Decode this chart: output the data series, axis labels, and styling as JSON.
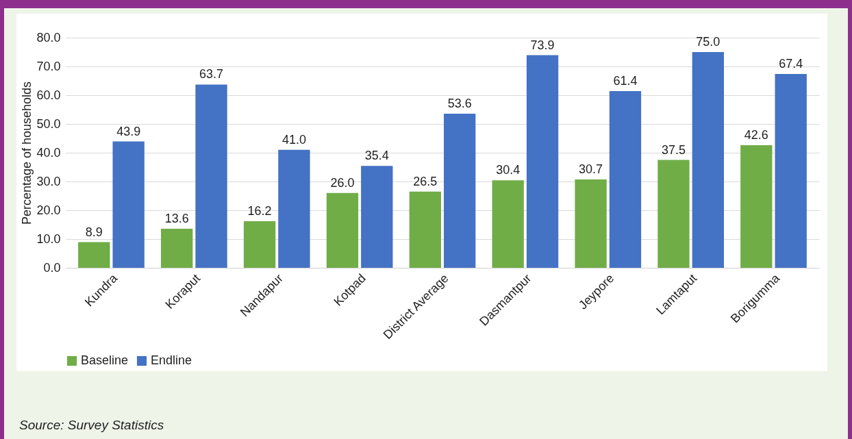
{
  "chart_data": {
    "type": "bar",
    "ylabel": "Percentage of households",
    "categories": [
      "Kundra",
      "Koraput",
      "Nandapur",
      "Kotpad",
      "District Average",
      "Dasmantpur",
      "Jeypore",
      "Lamtaput",
      "Borigumma"
    ],
    "series": [
      {
        "name": "Baseline",
        "color": "#70ad47",
        "values": [
          8.9,
          13.6,
          16.2,
          26.0,
          26.5,
          30.4,
          30.7,
          37.5,
          42.6
        ],
        "value_labels": [
          "8.9",
          "13.6",
          "16.2",
          "26.0",
          "26.5",
          "30.4",
          "30.7",
          "37.5",
          "42.6"
        ]
      },
      {
        "name": "Endline",
        "color": "#4472c4",
        "values": [
          43.9,
          63.7,
          41.0,
          35.4,
          53.6,
          73.9,
          61.4,
          75.0,
          67.4
        ],
        "value_labels": [
          "43.9",
          "63.7",
          "41.0",
          "35.4",
          "53.6",
          "73.9",
          "61.4",
          "75.0",
          "67.4"
        ]
      }
    ],
    "ylim": [
      0,
      80
    ],
    "yticks": [
      {
        "value": 0,
        "label": "0.0"
      },
      {
        "value": 10,
        "label": "10.0"
      },
      {
        "value": 20,
        "label": "20.0"
      },
      {
        "value": 30,
        "label": "30.0"
      },
      {
        "value": 40,
        "label": "40.0"
      },
      {
        "value": 50,
        "label": "50.0"
      },
      {
        "value": 60,
        "label": "60.0"
      },
      {
        "value": 70,
        "label": "70.0"
      },
      {
        "value": 80,
        "label": "80.0"
      }
    ],
    "grid": "y",
    "legend": "bottom",
    "annotations": [
      "Source: Survey Statistics"
    ]
  }
}
